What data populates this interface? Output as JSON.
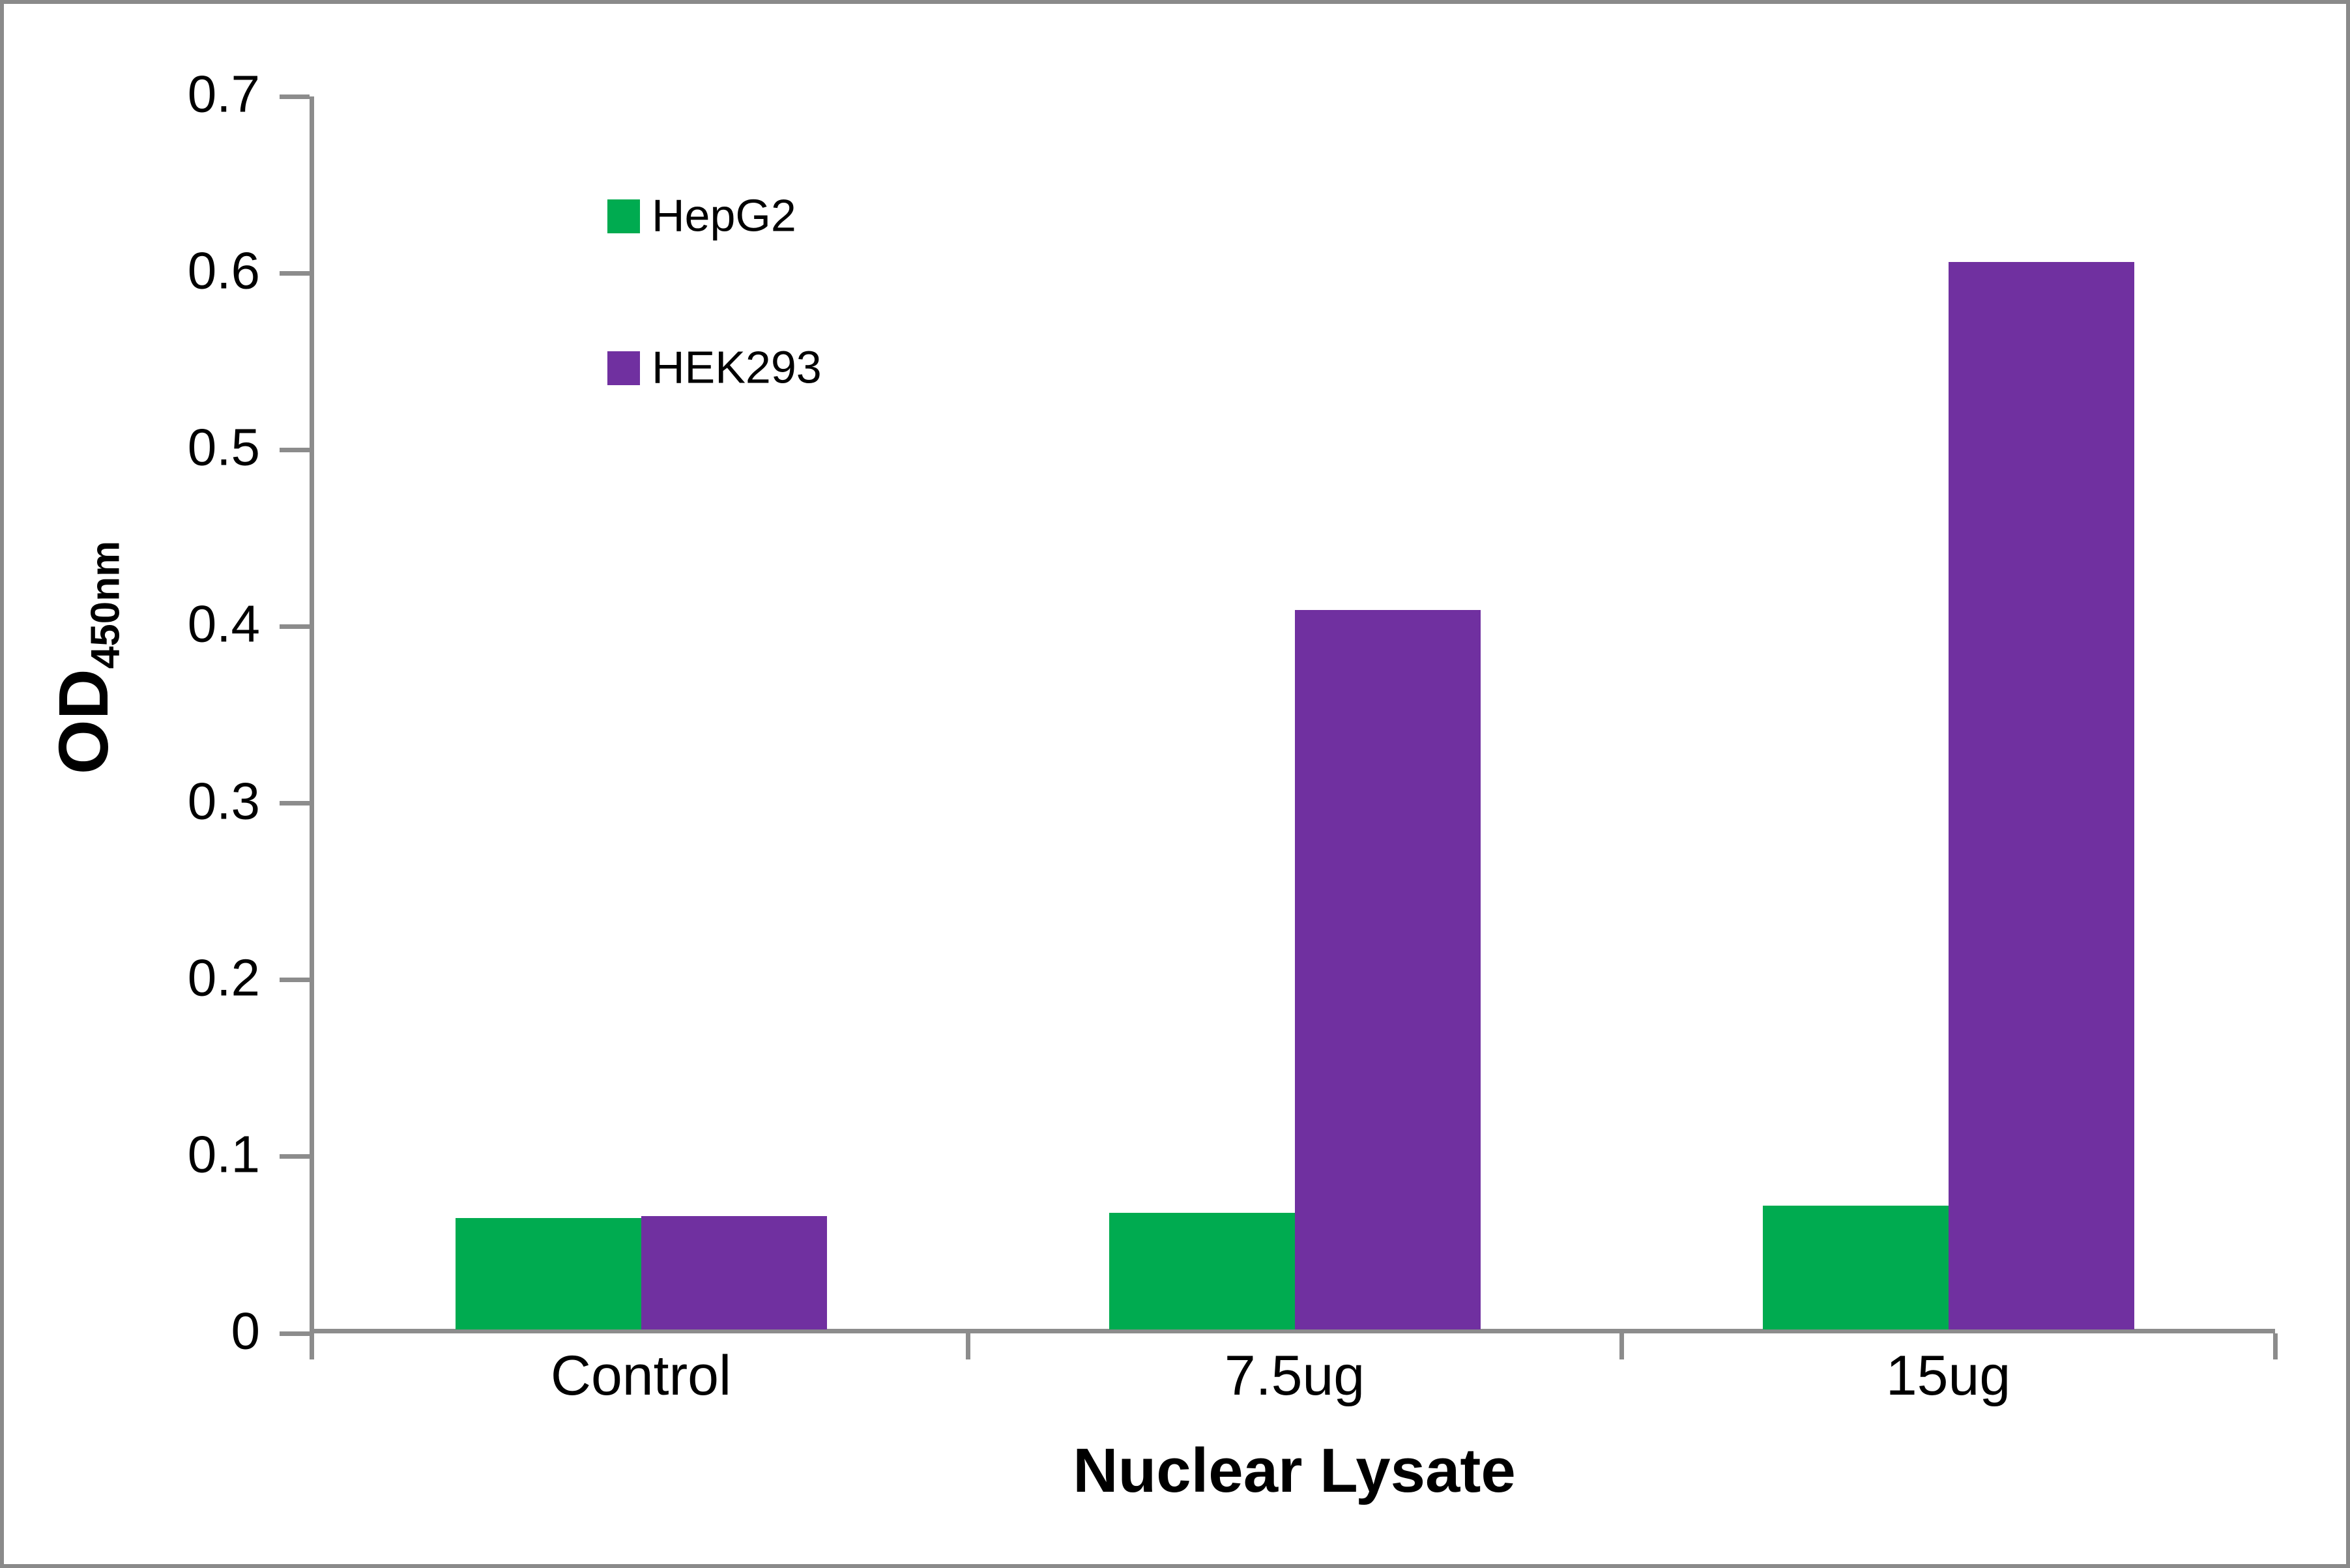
{
  "figure": {
    "background": "#ffffff",
    "frame_border_color": "#8a8a8a",
    "axis_color": "#8c8c8c",
    "text_color": "#000000"
  },
  "chart_data": {
    "type": "bar",
    "title": "",
    "categories": [
      "Control",
      "7.5ug",
      "15ug"
    ],
    "series": [
      {
        "name": "HepG2",
        "color": "#00ab50",
        "values": [
          0.063,
          0.066,
          0.07
        ]
      },
      {
        "name": "HEK293",
        "color": "#7030a0",
        "values": [
          0.064,
          0.407,
          0.604
        ]
      }
    ],
    "xlabel": "Nuclear Lysate",
    "ylabel_main": "OD",
    "ylabel_sub": "450nm",
    "ylim": [
      0,
      0.7
    ],
    "ytick_step": 0.1,
    "ytick_labels": [
      "0",
      "0.1",
      "0.2",
      "0.3",
      "0.4",
      "0.5",
      "0.6",
      "0.7"
    ],
    "grid": false,
    "legend_position": "upper-left-inside",
    "legend_entries": [
      "HepG2",
      "HEK293"
    ]
  }
}
